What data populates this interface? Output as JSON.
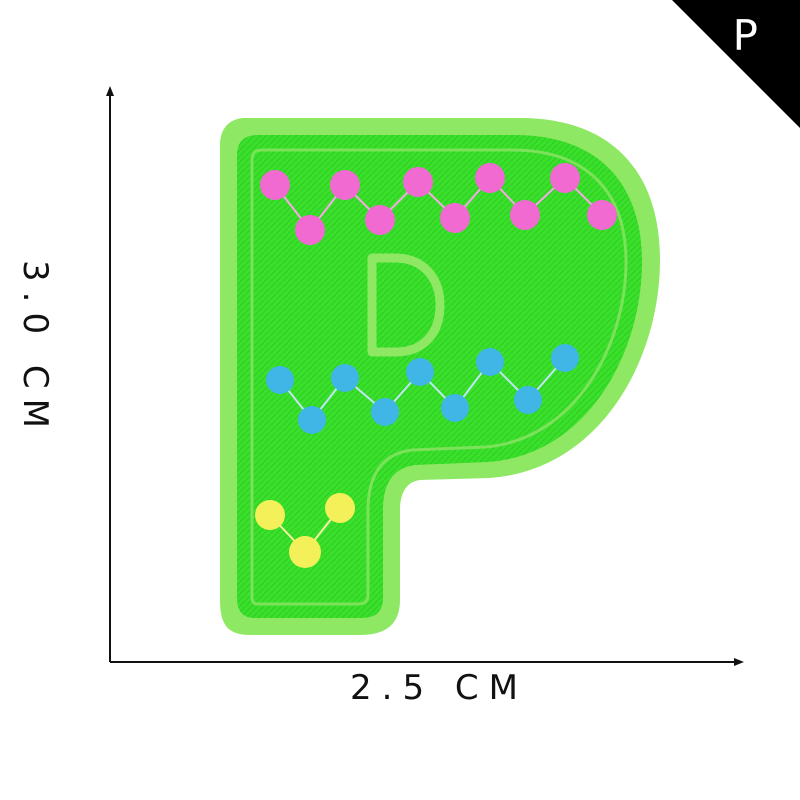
{
  "corner_tag": {
    "letter": "P",
    "color": "#000000"
  },
  "dimensions": {
    "width_label": "2.5 CM",
    "height_label": "3.0 CM"
  },
  "patch": {
    "letter": "P",
    "inner_letter": "D",
    "base_color": "#39e12a",
    "border_color": "#8fe864",
    "pink": "#f06ad2",
    "blue": "#3fb6e6",
    "yellow": "#f3f05a"
  }
}
